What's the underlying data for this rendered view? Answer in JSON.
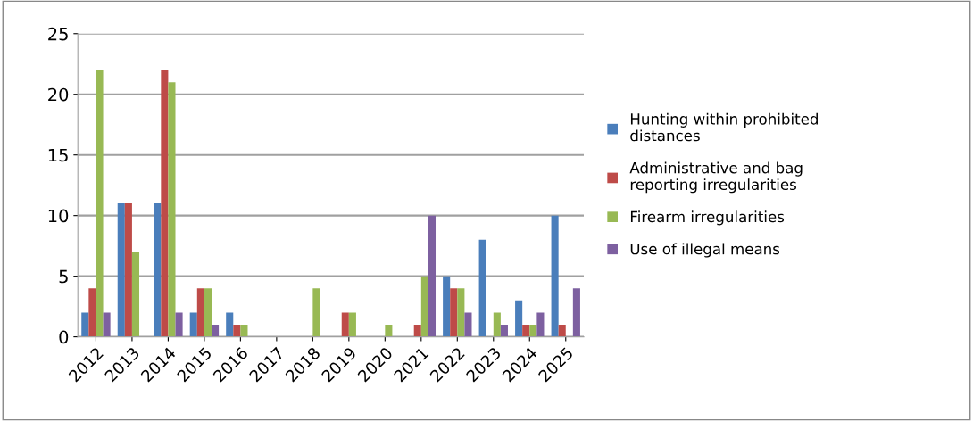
{
  "chart_data": {
    "type": "bar",
    "categories": [
      "2012",
      "2013",
      "2014",
      "2015",
      "2016",
      "2017",
      "2018",
      "2019",
      "2020",
      "2021",
      "2022",
      "2023",
      "2024",
      "2025"
    ],
    "series": [
      {
        "name": "Hunting within prohibited distances",
        "color": "#4a7ebb",
        "values": [
          2,
          11,
          11,
          2,
          2,
          0,
          0,
          0,
          0,
          0,
          5,
          8,
          3,
          10
        ]
      },
      {
        "name": "Administrative and bag reporting irregularities",
        "color": "#be4b48",
        "values": [
          4,
          11,
          22,
          4,
          1,
          0,
          0,
          2,
          0,
          1,
          4,
          0,
          1,
          1
        ]
      },
      {
        "name": "Firearm irregularities",
        "color": "#98b954",
        "values": [
          22,
          7,
          21,
          4,
          1,
          0,
          4,
          2,
          1,
          5,
          4,
          2,
          1,
          0
        ]
      },
      {
        "name": "Use of illegal means",
        "color": "#7d60a0",
        "values": [
          2,
          0,
          2,
          1,
          0,
          0,
          0,
          0,
          0,
          10,
          2,
          1,
          2,
          4
        ]
      }
    ],
    "ylim": [
      0,
      25
    ],
    "yticks": [
      0,
      5,
      10,
      15,
      20,
      25
    ],
    "grid": "y",
    "legend": "right"
  }
}
